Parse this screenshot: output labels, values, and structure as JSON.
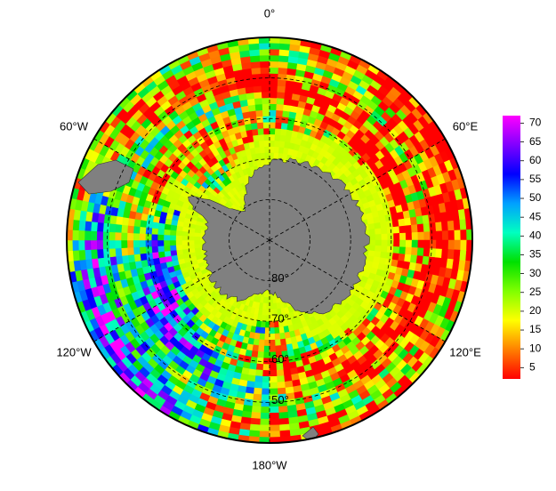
{
  "map": {
    "projection": "south-polar-stereographic",
    "lat_range": [
      -90,
      -40
    ],
    "lon_labels": [
      {
        "value": 0,
        "label": "0°"
      },
      {
        "value": 60,
        "label": "60°E"
      },
      {
        "value": 120,
        "label": "120°E"
      },
      {
        "value": 180,
        "label": "180°W"
      },
      {
        "value": -120,
        "label": "120°W"
      },
      {
        "value": -60,
        "label": "60°W"
      }
    ],
    "lat_labels": [
      {
        "value": -80,
        "label": "80°"
      },
      {
        "value": -70,
        "label": "70°"
      },
      {
        "value": -60,
        "label": "60°"
      },
      {
        "value": -50,
        "label": "50°"
      }
    ],
    "land_color": "#808080",
    "colorbar": {
      "lim": [
        2,
        72
      ],
      "ticks": [
        5,
        10,
        15,
        20,
        25,
        30,
        35,
        40,
        45,
        50,
        55,
        60,
        65,
        70
      ],
      "colors": [
        "#ff0000",
        "#ff8000",
        "#ffff00",
        "#80ff00",
        "#00e000",
        "#00ffc0",
        "#00a0ff",
        "#0000ff",
        "#8000ff",
        "#ff00ff"
      ]
    }
  }
}
